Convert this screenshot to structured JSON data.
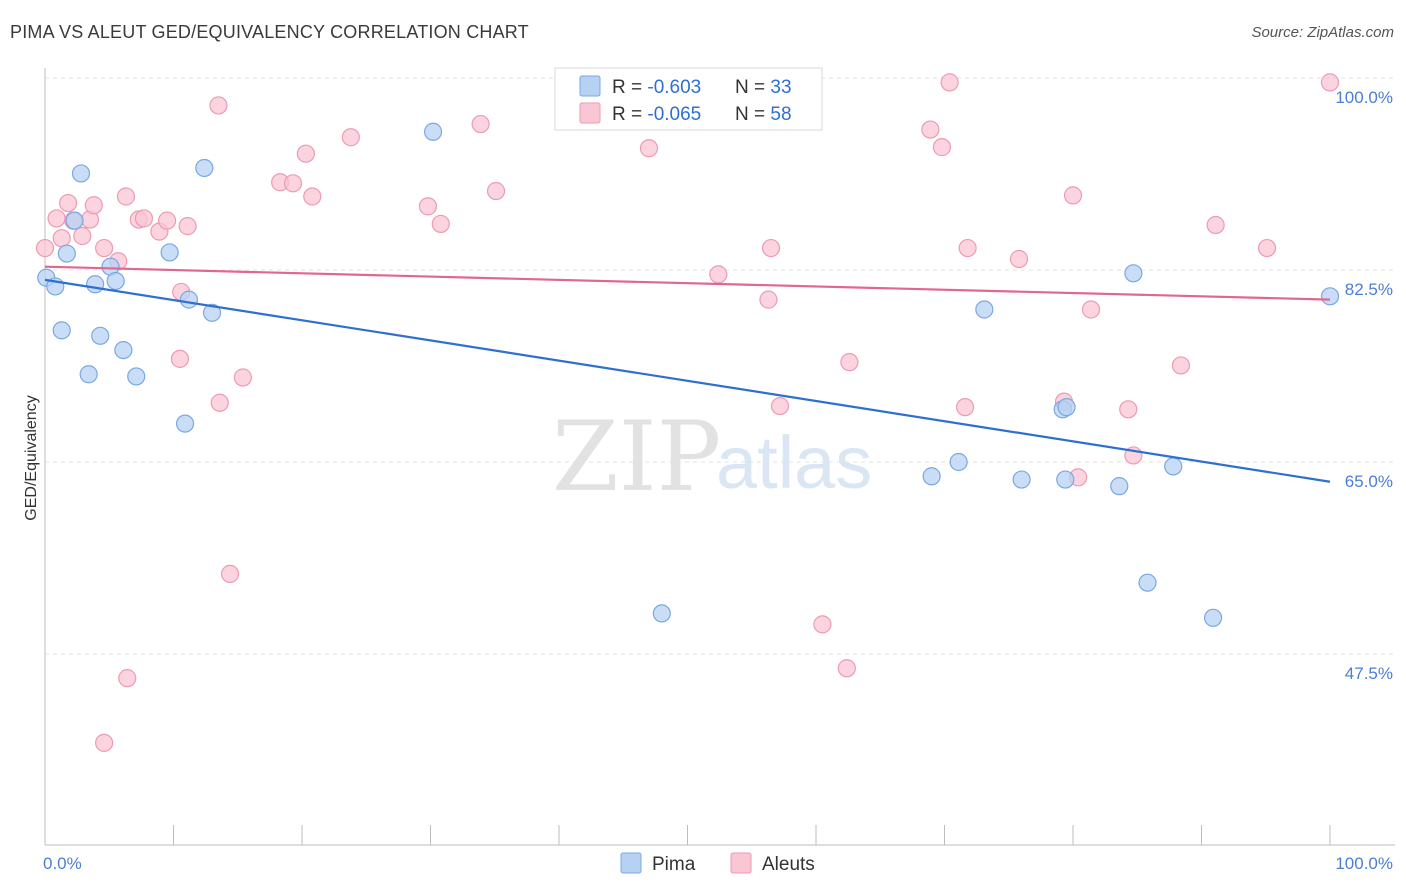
{
  "title": "PIMA VS ALEUT GED/EQUIVALENCY CORRELATION CHART",
  "source": "Source: ZipAtlas.com",
  "watermark": {
    "zip": "ZIP",
    "atlas": "atlas"
  },
  "legend": {
    "rows": [
      {
        "r_label": "R = ",
        "r_value": "-0.603",
        "n_label": "N = ",
        "n_value": "33"
      },
      {
        "r_label": "R = ",
        "r_value": "-0.065",
        "n_label": "N = ",
        "n_value": "58"
      }
    ]
  },
  "bottom_legend": [
    "Pima",
    "Aleuts"
  ],
  "colors": {
    "pima_fill": "#b7d1f3",
    "pima_stroke": "#7aa8e3",
    "pima_line": "#2e6fd1",
    "aleut_fill": "#f9c6d4",
    "aleut_stroke": "#ee9ab3",
    "aleut_line": "#e0678f",
    "tick": "#4a7fd4",
    "grid": "#e3e3e3"
  },
  "chart_data": {
    "type": "scatter",
    "title": "PIMA VS ALEUT GED/EQUIVALENCY CORRELATION CHART",
    "xlabel": "",
    "ylabel": "GED/Equivalency",
    "xlim": [
      0,
      100
    ],
    "ylim": [
      32.5,
      102
    ],
    "x_tick_labels": [
      "0.0%",
      "100.0%"
    ],
    "y_ticks": [
      47.5,
      65.0,
      82.5,
      100.0
    ],
    "y_tick_labels": [
      "47.5%",
      "65.0%",
      "82.5%",
      "100.0%"
    ],
    "grid": "horizontal dashed",
    "legend_position": "top-center",
    "series": [
      {
        "name": "Pima",
        "R": -0.603,
        "N": 33,
        "trend": {
          "x": [
            0,
            100
          ],
          "y": [
            81.6,
            63.2
          ]
        },
        "points": [
          [
            0.1,
            81.8
          ],
          [
            0.8,
            81.0
          ],
          [
            1.3,
            77.0
          ],
          [
            1.7,
            84.0
          ],
          [
            2.3,
            87.0
          ],
          [
            2.8,
            91.3
          ],
          [
            3.4,
            73.0
          ],
          [
            3.9,
            81.2
          ],
          [
            4.3,
            76.5
          ],
          [
            5.1,
            82.8
          ],
          [
            5.5,
            81.5
          ],
          [
            6.1,
            75.2
          ],
          [
            7.1,
            72.8
          ],
          [
            9.7,
            84.1
          ],
          [
            10.9,
            68.5
          ],
          [
            11.2,
            79.8
          ],
          [
            12.4,
            91.8
          ],
          [
            13.0,
            78.6
          ],
          [
            30.2,
            95.1
          ],
          [
            48.0,
            51.2
          ],
          [
            69.0,
            63.7
          ],
          [
            71.1,
            65.0
          ],
          [
            73.1,
            78.9
          ],
          [
            76.0,
            63.4
          ],
          [
            79.2,
            69.8
          ],
          [
            79.4,
            63.4
          ],
          [
            79.5,
            70.0
          ],
          [
            83.6,
            62.8
          ],
          [
            84.7,
            82.2
          ],
          [
            85.8,
            54.0
          ],
          [
            87.8,
            64.6
          ],
          [
            90.9,
            50.8
          ],
          [
            100.0,
            80.1
          ]
        ]
      },
      {
        "name": "Aleuts",
        "R": -0.065,
        "N": 58,
        "trend": {
          "x": [
            0,
            100
          ],
          "y": [
            82.8,
            79.8
          ]
        },
        "points": [
          [
            0.0,
            84.5
          ],
          [
            0.9,
            87.2
          ],
          [
            1.3,
            85.4
          ],
          [
            1.8,
            88.6
          ],
          [
            2.2,
            87.0
          ],
          [
            2.9,
            85.6
          ],
          [
            3.5,
            87.1
          ],
          [
            3.8,
            88.4
          ],
          [
            4.6,
            84.5
          ],
          [
            4.6,
            39.4
          ],
          [
            5.7,
            83.3
          ],
          [
            6.3,
            89.2
          ],
          [
            6.4,
            45.3
          ],
          [
            7.3,
            87.1
          ],
          [
            7.7,
            87.2
          ],
          [
            8.9,
            86.0
          ],
          [
            9.5,
            87.0
          ],
          [
            10.5,
            74.4
          ],
          [
            10.6,
            80.5
          ],
          [
            11.1,
            86.5
          ],
          [
            13.5,
            97.5
          ],
          [
            13.6,
            70.4
          ],
          [
            14.4,
            54.8
          ],
          [
            15.4,
            72.7
          ],
          [
            18.3,
            90.5
          ],
          [
            19.3,
            90.4
          ],
          [
            20.3,
            93.1
          ],
          [
            20.8,
            89.2
          ],
          [
            23.8,
            94.6
          ],
          [
            29.8,
            88.3
          ],
          [
            30.8,
            86.7
          ],
          [
            33.9,
            95.8
          ],
          [
            35.1,
            89.7
          ],
          [
            47.0,
            93.6
          ],
          [
            52.4,
            82.1
          ],
          [
            55.7,
            99.5
          ],
          [
            56.3,
            79.8
          ],
          [
            56.5,
            84.5
          ],
          [
            57.2,
            70.1
          ],
          [
            60.5,
            50.2
          ],
          [
            62.4,
            46.2
          ],
          [
            62.6,
            74.1
          ],
          [
            68.9,
            95.3
          ],
          [
            69.8,
            93.7
          ],
          [
            70.4,
            99.6
          ],
          [
            71.6,
            70.0
          ],
          [
            71.8,
            84.5
          ],
          [
            75.8,
            83.5
          ],
          [
            79.3,
            70.5
          ],
          [
            80.0,
            89.3
          ],
          [
            80.4,
            63.6
          ],
          [
            81.4,
            78.9
          ],
          [
            84.3,
            69.8
          ],
          [
            84.7,
            65.6
          ],
          [
            88.4,
            73.8
          ],
          [
            91.1,
            86.6
          ],
          [
            95.1,
            84.5
          ],
          [
            100.0,
            99.6
          ]
        ]
      }
    ]
  }
}
